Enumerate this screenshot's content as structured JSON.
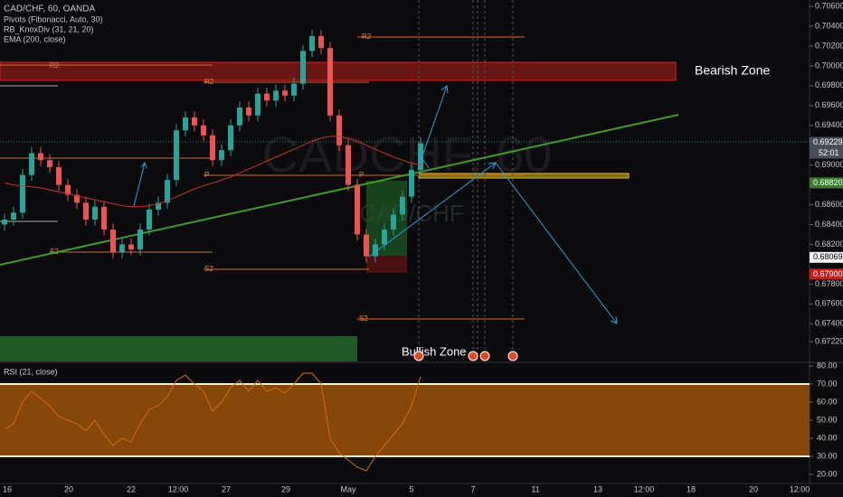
{
  "chart_data": {
    "type": "candlestick",
    "title": "CAD/CHF, 60, OANDA",
    "indicators": [
      "Pivots (Fibonacci, Auto, 30)",
      "RB_KnoxDiv (31, 21, 20)",
      "EMA (200, close)"
    ],
    "watermark": "CADCHF, 60",
    "watermark2": "CAD/CHF",
    "annotations": [
      "Bearish Zone",
      "Bullish Zone"
    ],
    "pivot_labels": [
      "R2",
      "R2",
      "R2",
      "P",
      "P",
      "S2",
      "S2",
      "S2"
    ],
    "candles": {
      "open": [
        0.684,
        0.6845,
        0.6852,
        0.689,
        0.6912,
        0.6905,
        0.6898,
        0.688,
        0.687,
        0.6862,
        0.6845,
        0.6858,
        0.6835,
        0.6812,
        0.682,
        0.6815,
        0.6835,
        0.6855,
        0.6862,
        0.6885,
        0.6935,
        0.6948,
        0.694,
        0.693,
        0.6905,
        0.6915,
        0.694,
        0.6958,
        0.695,
        0.6972,
        0.6965,
        0.6975,
        0.697,
        0.6982,
        0.7015,
        0.703,
        0.7018,
        0.695,
        0.692,
        0.688,
        0.683,
        0.6808,
        0.682,
        0.6835,
        0.685,
        0.6868,
        0.6895
      ],
      "high": [
        0.6851,
        0.6858,
        0.6896,
        0.6918,
        0.6918,
        0.6911,
        0.6904,
        0.6886,
        0.6876,
        0.6868,
        0.6864,
        0.6864,
        0.6841,
        0.6826,
        0.6826,
        0.6841,
        0.6861,
        0.6868,
        0.6891,
        0.6941,
        0.6954,
        0.6954,
        0.6946,
        0.6936,
        0.6921,
        0.6946,
        0.6964,
        0.6964,
        0.6978,
        0.6978,
        0.6981,
        0.6981,
        0.6988,
        0.7021,
        0.7036,
        0.7036,
        0.7024,
        0.6956,
        0.6926,
        0.6886,
        0.6836,
        0.6826,
        0.6841,
        0.6856,
        0.6874,
        0.6901,
        0.6928
      ],
      "low": [
        0.6834,
        0.6839,
        0.6846,
        0.6884,
        0.6899,
        0.6892,
        0.6874,
        0.6864,
        0.6856,
        0.6839,
        0.6839,
        0.6829,
        0.6806,
        0.6806,
        0.6809,
        0.6809,
        0.6829,
        0.6849,
        0.6856,
        0.6879,
        0.6929,
        0.6934,
        0.6924,
        0.6899,
        0.6899,
        0.6909,
        0.6934,
        0.6944,
        0.6944,
        0.6959,
        0.6959,
        0.6964,
        0.6964,
        0.6976,
        0.7009,
        0.7012,
        0.6944,
        0.6914,
        0.6874,
        0.6824,
        0.6802,
        0.6802,
        0.6814,
        0.6829,
        0.6844,
        0.6862,
        0.6889
      ],
      "close": [
        0.6845,
        0.6852,
        0.689,
        0.6912,
        0.6905,
        0.6898,
        0.688,
        0.687,
        0.6862,
        0.6845,
        0.6858,
        0.6835,
        0.6812,
        0.682,
        0.6815,
        0.6835,
        0.6855,
        0.6862,
        0.6885,
        0.6935,
        0.6948,
        0.694,
        0.693,
        0.6905,
        0.6915,
        0.694,
        0.6958,
        0.695,
        0.6972,
        0.6965,
        0.6975,
        0.697,
        0.6982,
        0.7015,
        0.703,
        0.7018,
        0.695,
        0.692,
        0.688,
        0.683,
        0.6808,
        0.682,
        0.6835,
        0.685,
        0.6868,
        0.6895,
        0.6922
      ]
    },
    "ema": [
      0.6882,
      0.688,
      0.6879,
      0.6878,
      0.6877,
      0.6875,
      0.6873,
      0.6871,
      0.6869,
      0.6867,
      0.6865,
      0.6863,
      0.6861,
      0.6859,
      0.6858,
      0.6858,
      0.6859,
      0.6861,
      0.6864,
      0.6868,
      0.6872,
      0.6876,
      0.6879,
      0.6882,
      0.6885,
      0.6888,
      0.6892,
      0.6896,
      0.69,
      0.6904,
      0.6908,
      0.6912,
      0.6916,
      0.692,
      0.6924,
      0.6927,
      0.6929,
      0.6929,
      0.6927,
      0.6924,
      0.692,
      0.6916,
      0.6912,
      0.6908,
      0.6905,
      0.6902,
      0.69
    ],
    "ylim": [
      0.6702,
      0.70664
    ],
    "yticks": [
      {
        "value": 0.706,
        "label": "0.70600"
      },
      {
        "value": 0.704,
        "label": "0.70400"
      },
      {
        "value": 0.702,
        "label": "0.70200"
      },
      {
        "value": 0.7,
        "label": "0.70000"
      },
      {
        "value": 0.698,
        "label": "0.69800"
      },
      {
        "value": 0.696,
        "label": "0.69600"
      },
      {
        "value": 0.694,
        "label": "0.69400"
      },
      {
        "value": 0.69,
        "label": "0.69000"
      },
      {
        "value": 0.686,
        "label": "0.68600"
      },
      {
        "value": 0.684,
        "label": "0.68400"
      },
      {
        "value": 0.682,
        "label": "0.68200"
      },
      {
        "value": 0.678,
        "label": "0.67800"
      },
      {
        "value": 0.676,
        "label": "0.67600"
      },
      {
        "value": 0.674,
        "label": "0.67400"
      },
      {
        "value": 0.6722,
        "label": "0.67220"
      }
    ],
    "price_labels": [
      {
        "value": 0.69229,
        "label": "0.69229"
      },
      {
        "value": 0.6882,
        "label": "0.68820"
      },
      {
        "value": 0.68069,
        "label": "0.68069"
      },
      {
        "value": 0.679,
        "label": "0.67900"
      }
    ],
    "countdown": "52:01",
    "time_labels": [
      "16",
      "20",
      "22",
      "12:00",
      "27",
      "29",
      "May",
      "5",
      "7",
      "11",
      "13",
      "12:00",
      "18",
      "20",
      "12:00"
    ],
    "rsi": {
      "title": "RSI (21, close)",
      "values": [
        45,
        48,
        60,
        66,
        62,
        58,
        52,
        50,
        48,
        44,
        50,
        42,
        36,
        40,
        38,
        48,
        56,
        58,
        63,
        72,
        75,
        70,
        66,
        55,
        60,
        68,
        72,
        66,
        72,
        66,
        68,
        65,
        70,
        76,
        76,
        70,
        40,
        32,
        28,
        24,
        22,
        30,
        36,
        42,
        48,
        58,
        74
      ],
      "ylim": [
        15,
        81
      ],
      "band": [
        70,
        30
      ],
      "yticks": [
        {
          "value": 80,
          "label": "80.00"
        },
        {
          "value": 70,
          "label": "70.00"
        },
        {
          "value": 60,
          "label": "60.00"
        },
        {
          "value": 50,
          "label": "50.00"
        },
        {
          "value": 40,
          "label": "40.00"
        },
        {
          "value": 30,
          "label": "30.00"
        },
        {
          "value": 20,
          "label": "20.00"
        }
      ]
    }
  }
}
